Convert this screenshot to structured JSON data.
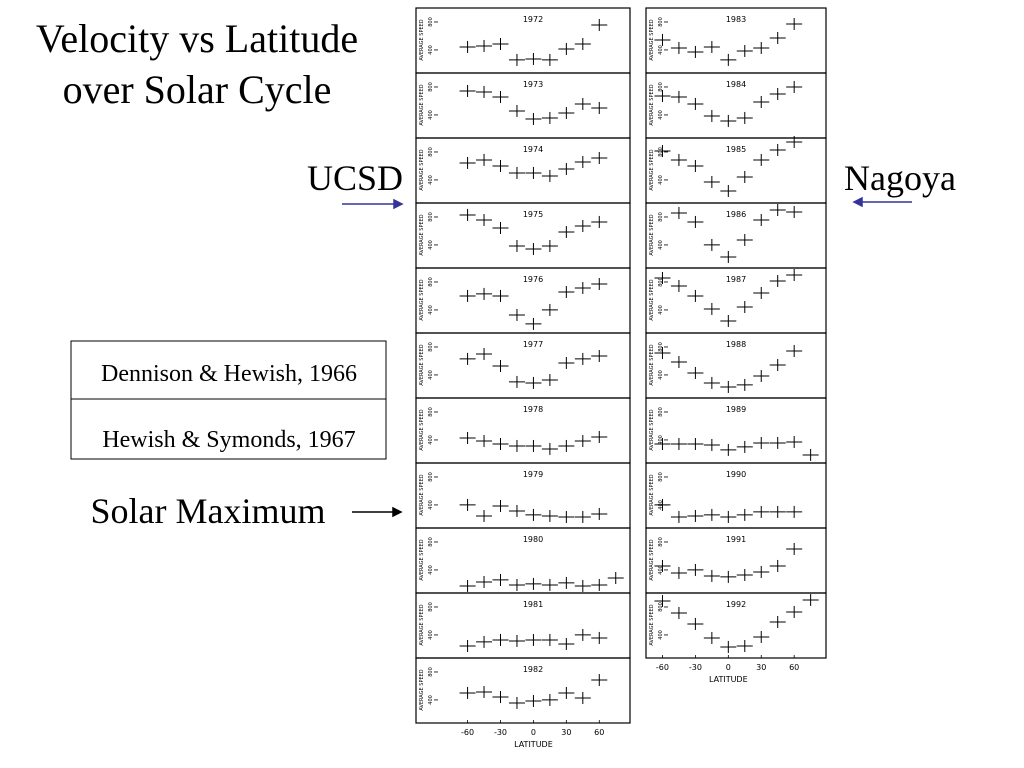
{
  "slide": {
    "title": [
      "Velocity vs Latitude",
      "over Solar Cycle"
    ],
    "left_label": "UCSD",
    "right_label": "Nagoya",
    "references": [
      "Dennison & Hewish, 1966",
      "Hewish & Symonds, 1967"
    ],
    "annotation": "Solar Maximum"
  },
  "chart_data": [
    {
      "type": "scatter",
      "title": "1972",
      "ylabel": "AVERAGE SPEED",
      "x": [
        -60,
        -45,
        -30,
        -15,
        0,
        15,
        30,
        45,
        60
      ],
      "values": [
        442,
        457,
        485,
        257,
        271,
        257,
        414,
        485,
        757
      ],
      "xlim": [
        -107,
        88
      ],
      "ylim": [
        70,
        1000
      ],
      "yticks": [
        400,
        800
      ],
      "color": "#000000"
    },
    {
      "type": "scatter",
      "title": "1973",
      "ylabel": "AVERAGE SPEED",
      "x": [
        -60,
        -45,
        -30,
        -15,
        0,
        15,
        30,
        45,
        60
      ],
      "values": [
        743,
        729,
        657,
        457,
        342,
        357,
        428,
        557,
        500
      ],
      "xlim": [
        -107,
        88
      ],
      "ylim": [
        70,
        1000
      ],
      "yticks": [
        400,
        800
      ],
      "color": "#000000"
    },
    {
      "type": "scatter",
      "title": "1974",
      "ylabel": "AVERAGE SPEED",
      "x": [
        -60,
        -45,
        -30,
        -15,
        0,
        15,
        30,
        45,
        60
      ],
      "values": [
        643,
        686,
        600,
        500,
        500,
        457,
        557,
        657,
        714
      ],
      "xlim": [
        -107,
        88
      ],
      "ylim": [
        70,
        1000
      ],
      "yticks": [
        400,
        800
      ],
      "color": "#000000"
    },
    {
      "type": "scatter",
      "title": "1975",
      "ylabel": "AVERAGE SPEED",
      "x": [
        -60,
        -45,
        -30,
        -15,
        0,
        15,
        30,
        45,
        60
      ],
      "values": [
        829,
        757,
        643,
        385,
        342,
        385,
        585,
        671,
        729
      ],
      "xlim": [
        -107,
        88
      ],
      "ylim": [
        70,
        1000
      ],
      "yticks": [
        400,
        800
      ],
      "color": "#000000"
    },
    {
      "type": "scatter",
      "title": "1976",
      "ylabel": "AVERAGE SPEED",
      "x": [
        -60,
        -45,
        -30,
        -15,
        0,
        15,
        30,
        45,
        60
      ],
      "values": [
        600,
        629,
        600,
        328,
        200,
        400,
        657,
        714,
        771
      ],
      "xlim": [
        -107,
        88
      ],
      "ylim": [
        70,
        1000
      ],
      "yticks": [
        400,
        800
      ],
      "color": "#000000"
    },
    {
      "type": "scatter",
      "title": "1977",
      "ylabel": "AVERAGE SPEED",
      "x": [
        -60,
        -45,
        -30,
        -15,
        0,
        15,
        30,
        45,
        60
      ],
      "values": [
        629,
        700,
        528,
        300,
        285,
        328,
        571,
        629,
        671
      ],
      "xlim": [
        -107,
        88
      ],
      "ylim": [
        70,
        1000
      ],
      "yticks": [
        400,
        800
      ],
      "color": "#000000"
    },
    {
      "type": "scatter",
      "title": "1978",
      "ylabel": "AVERAGE SPEED",
      "x": [
        -60,
        -45,
        -30,
        -15,
        0,
        15,
        30,
        45,
        60
      ],
      "values": [
        428,
        385,
        342,
        314,
        314,
        271,
        314,
        385,
        442
      ],
      "xlim": [
        -107,
        88
      ],
      "ylim": [
        70,
        1000
      ],
      "yticks": [
        400,
        800
      ],
      "color": "#000000"
    },
    {
      "type": "scatter",
      "title": "1979",
      "ylabel": "AVERAGE SPEED",
      "x": [
        -60,
        -45,
        -30,
        -15,
        0,
        15,
        30,
        45,
        60
      ],
      "values": [
        400,
        242,
        385,
        314,
        257,
        242,
        228,
        228,
        271
      ],
      "xlim": [
        -107,
        88
      ],
      "ylim": [
        70,
        1000
      ],
      "yticks": [
        400,
        800
      ],
      "color": "#000000"
    },
    {
      "type": "scatter",
      "title": "1980",
      "ylabel": "AVERAGE SPEED",
      "x": [
        -60,
        -45,
        -30,
        -15,
        0,
        15,
        30,
        45,
        60,
        75
      ],
      "values": [
        171,
        228,
        257,
        185,
        200,
        185,
        214,
        171,
        185,
        285
      ],
      "xlim": [
        -107,
        88
      ],
      "ylim": [
        70,
        1000
      ],
      "yticks": [
        400,
        800
      ],
      "color": "#000000"
    },
    {
      "type": "scatter",
      "title": "1981",
      "ylabel": "AVERAGE SPEED",
      "x": [
        -60,
        -45,
        -30,
        -15,
        0,
        15,
        30,
        45,
        60
      ],
      "values": [
        242,
        300,
        328,
        314,
        328,
        328,
        271,
        400,
        357
      ],
      "xlim": [
        -107,
        88
      ],
      "ylim": [
        70,
        1000
      ],
      "yticks": [
        400,
        800
      ],
      "color": "#000000"
    },
    {
      "type": "scatter",
      "title": "1982",
      "ylabel": "AVERAGE SPEED",
      "xlabel": "LATITUDE",
      "x": [
        -60,
        -45,
        -30,
        -15,
        0,
        15,
        30,
        45,
        60
      ],
      "values": [
        500,
        514,
        442,
        357,
        385,
        400,
        500,
        428,
        685
      ],
      "xlim": [
        -107,
        88
      ],
      "ylim": [
        70,
        1000
      ],
      "yticks": [
        400,
        800
      ],
      "xticks": [
        -60,
        -30,
        0,
        30,
        60
      ],
      "color": "#000000"
    },
    {
      "type": "scatter",
      "title": "1983",
      "ylabel": "AVERAGE SPEED",
      "x": [
        -60,
        -45,
        -30,
        -15,
        0,
        15,
        30,
        45,
        60
      ],
      "values": [
        543,
        428,
        371,
        442,
        257,
        385,
        428,
        571,
        771
      ],
      "xlim": [
        -75,
        89
      ],
      "ylim": [
        70,
        1000
      ],
      "yticks": [
        400,
        800
      ],
      "color": "#000000"
    },
    {
      "type": "scatter",
      "title": "1984",
      "ylabel": "AVERAGE SPEED",
      "x": [
        -60,
        -45,
        -30,
        -15,
        0,
        15,
        30,
        45,
        60
      ],
      "values": [
        671,
        657,
        557,
        385,
        314,
        357,
        585,
        700,
        800
      ],
      "xlim": [
        -75,
        89
      ],
      "ylim": [
        70,
        1000
      ],
      "yticks": [
        400,
        800
      ],
      "color": "#000000"
    },
    {
      "type": "scatter",
      "title": "1985",
      "ylabel": "AVERAGE SPEED",
      "x": [
        -60,
        -45,
        -30,
        -15,
        0,
        15,
        30,
        45,
        60
      ],
      "values": [
        814,
        686,
        600,
        371,
        242,
        442,
        686,
        829,
        943
      ],
      "xlim": [
        -75,
        89
      ],
      "ylim": [
        70,
        1000
      ],
      "yticks": [
        400,
        800
      ],
      "color": "#000000"
    },
    {
      "type": "scatter",
      "title": "1986",
      "ylabel": "AVERAGE SPEED",
      "x": [
        -45,
        -30,
        -15,
        0,
        15,
        30,
        45,
        60
      ],
      "values": [
        857,
        729,
        400,
        228,
        471,
        757,
        900,
        871
      ],
      "xlim": [
        -75,
        89
      ],
      "ylim": [
        70,
        1000
      ],
      "yticks": [
        400,
        800
      ],
      "color": "#000000"
    },
    {
      "type": "scatter",
      "title": "1987",
      "ylabel": "AVERAGE SPEED",
      "x": [
        -60,
        -45,
        -30,
        -15,
        0,
        15,
        30,
        45,
        60
      ],
      "values": [
        857,
        743,
        600,
        414,
        242,
        442,
        643,
        814,
        900
      ],
      "xlim": [
        -75,
        89
      ],
      "ylim": [
        70,
        1000
      ],
      "yticks": [
        400,
        800
      ],
      "color": "#000000"
    },
    {
      "type": "scatter",
      "title": "1988",
      "ylabel": "AVERAGE SPEED",
      "x": [
        -60,
        -45,
        -30,
        -15,
        0,
        15,
        30,
        45,
        60
      ],
      "values": [
        714,
        585,
        428,
        285,
        228,
        257,
        385,
        542,
        743
      ],
      "xlim": [
        -75,
        89
      ],
      "ylim": [
        70,
        1000
      ],
      "yticks": [
        400,
        800
      ],
      "color": "#000000"
    },
    {
      "type": "scatter",
      "title": "1989",
      "ylabel": "AVERAGE SPEED",
      "x": [
        -60,
        -45,
        -30,
        -15,
        0,
        15,
        30,
        45,
        60,
        75
      ],
      "values": [
        342,
        342,
        342,
        328,
        257,
        300,
        357,
        357,
        371,
        185
      ],
      "xlim": [
        -75,
        89
      ],
      "ylim": [
        70,
        1000
      ],
      "yticks": [
        400,
        800
      ],
      "color": "#000000"
    },
    {
      "type": "scatter",
      "title": "1990",
      "ylabel": "AVERAGE SPEED",
      "x": [
        -60,
        -45,
        -30,
        -15,
        0,
        15,
        30,
        45,
        60
      ],
      "values": [
        400,
        228,
        242,
        257,
        228,
        257,
        300,
        300,
        300
      ],
      "xlim": [
        -75,
        89
      ],
      "ylim": [
        70,
        1000
      ],
      "yticks": [
        400,
        800
      ],
      "color": "#000000"
    },
    {
      "type": "scatter",
      "title": "1991",
      "ylabel": "AVERAGE SPEED",
      "x": [
        -60,
        -45,
        -30,
        -15,
        0,
        15,
        30,
        45,
        60
      ],
      "values": [
        457,
        357,
        400,
        314,
        300,
        328,
        371,
        457,
        700
      ],
      "xlim": [
        -75,
        89
      ],
      "ylim": [
        70,
        1000
      ],
      "yticks": [
        400,
        800
      ],
      "color": "#000000"
    },
    {
      "type": "scatter",
      "title": "1992",
      "ylabel": "AVERAGE SPEED",
      "xlabel": "LATITUDE",
      "x": [
        -60,
        -45,
        -30,
        -15,
        0,
        15,
        30,
        45,
        60,
        75
      ],
      "values": [
        886,
        714,
        557,
        357,
        228,
        242,
        371,
        585,
        729,
        900
      ],
      "xlim": [
        -75,
        89
      ],
      "ylim": [
        70,
        1000
      ],
      "yticks": [
        400,
        800
      ],
      "xticks": [
        -60,
        -30,
        0,
        30,
        60
      ],
      "color": "#000000"
    }
  ]
}
